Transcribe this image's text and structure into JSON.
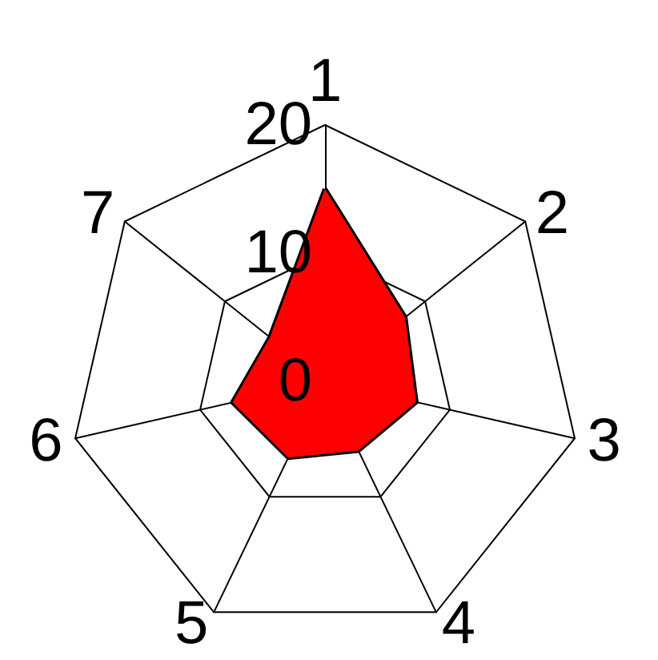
{
  "chart_data": {
    "type": "radar",
    "categories": [
      "1",
      "2",
      "3",
      "4",
      "5",
      "6",
      "7"
    ],
    "series": [
      {
        "color": "#ff0000",
        "values": [
          15,
          8,
          7.3,
          6,
          6.6,
          7.4,
          5.5
        ]
      }
    ],
    "ylim": [
      0,
      20
    ],
    "yticks": [
      0,
      10,
      20
    ],
    "marker": "none",
    "line_style": "solid"
  }
}
